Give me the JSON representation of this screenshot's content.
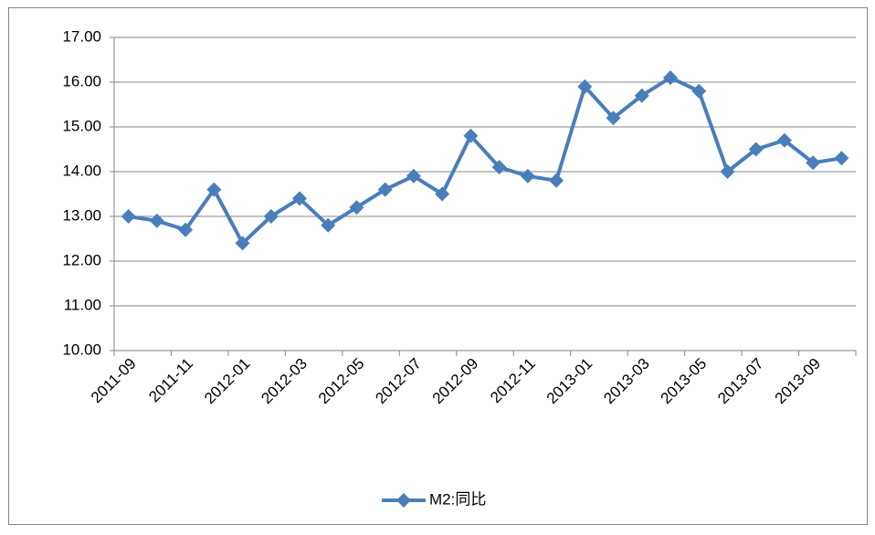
{
  "chart_data": {
    "type": "line",
    "categories": [
      "2011-09",
      null,
      "2011-11",
      null,
      "2012-01",
      null,
      "2012-03",
      null,
      "2012-05",
      null,
      "2012-07",
      null,
      "2012-09",
      null,
      "2012-11",
      null,
      "2013-01",
      null,
      "2013-03",
      null,
      "2013-05",
      null,
      "2013-07",
      null,
      "2013-09",
      null
    ],
    "series": [
      {
        "name": "M2:同比",
        "color": "#4a7ebb",
        "values": [
          13.0,
          12.9,
          12.7,
          13.6,
          12.4,
          13.0,
          13.4,
          12.8,
          13.2,
          13.6,
          13.9,
          13.5,
          14.8,
          14.1,
          13.9,
          13.8,
          15.9,
          15.2,
          15.7,
          16.1,
          15.8,
          14.0,
          14.5,
          14.7,
          14.2,
          14.3
        ]
      }
    ],
    "ylim": [
      10,
      17
    ],
    "yticks": [
      {
        "value": 10,
        "label": "10.00"
      },
      {
        "value": 11,
        "label": "11.00"
      },
      {
        "value": 12,
        "label": "12.00"
      },
      {
        "value": 13,
        "label": "13.00"
      },
      {
        "value": 14,
        "label": "14.00"
      },
      {
        "value": 15,
        "label": "15.00"
      },
      {
        "value": 16,
        "label": "16.00"
      },
      {
        "value": 17,
        "label": "17.00"
      }
    ],
    "grid": true,
    "legend": "bottom"
  }
}
